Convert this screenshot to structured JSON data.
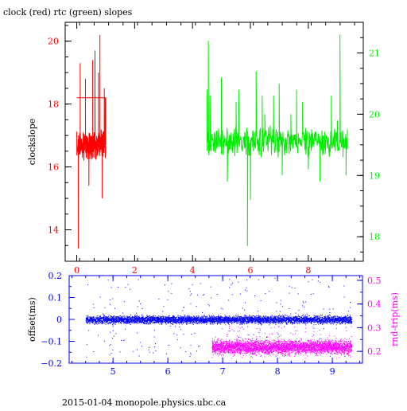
{
  "title": "clock (red) rtc (green) slopes",
  "footer": "2015-01-04  monopole.physics.ubc.ca",
  "colors": {
    "clock": "#ff0000",
    "rtc": "#00ee00",
    "offset": "#0000ff",
    "rndtrip": "#ff00ff",
    "frame": "#000000"
  },
  "chart_data": [
    {
      "type": "line",
      "title": "clock (red) rtc (green) slopes",
      "ylabel": "clockslope",
      "xlim": [
        -0.4,
        9.9
      ],
      "ylim_left": [
        13.0,
        20.6
      ],
      "ylim_right": [
        17.6,
        21.5
      ],
      "x_ticks": [
        0,
        2,
        4,
        6,
        8
      ],
      "y_left_ticks": [
        14,
        16,
        18,
        20
      ],
      "y_right_ticks": [
        18,
        19,
        20,
        21
      ],
      "grid": false,
      "series": [
        {
          "name": "clock",
          "axis": "left",
          "x_range": [
            0.0,
            1.0
          ],
          "baseline": 16.7,
          "spread": 0.35,
          "spikes": [
            [
              0.05,
              13.4
            ],
            [
              0.12,
              19.3
            ],
            [
              0.3,
              18.8
            ],
            [
              0.42,
              15.4
            ],
            [
              0.55,
              19.4
            ],
            [
              0.63,
              19.7
            ],
            [
              0.75,
              19.0
            ],
            [
              0.8,
              20.2
            ],
            [
              0.88,
              15.0
            ],
            [
              0.95,
              18.5
            ],
            [
              0.98,
              18.2
            ]
          ],
          "plateau": {
            "x": [
              0.0,
              1.0
            ],
            "y": 18.2
          }
        },
        {
          "name": "rtc",
          "axis": "right",
          "x_range": [
            4.5,
            9.35
          ],
          "baseline": 19.55,
          "spread": 0.18,
          "spikes": [
            [
              4.5,
              20.4
            ],
            [
              4.55,
              21.2
            ],
            [
              4.6,
              20.3
            ],
            [
              5.0,
              20.6
            ],
            [
              5.2,
              18.9
            ],
            [
              5.5,
              20.2
            ],
            [
              5.6,
              20.4
            ],
            [
              5.9,
              17.85
            ],
            [
              6.0,
              18.6
            ],
            [
              6.2,
              20.7
            ],
            [
              6.4,
              20.3
            ],
            [
              6.5,
              20.0
            ],
            [
              6.8,
              20.3
            ],
            [
              7.0,
              20.5
            ],
            [
              7.1,
              19.0
            ],
            [
              7.4,
              20.0
            ],
            [
              7.5,
              19.6
            ],
            [
              7.6,
              20.4
            ],
            [
              7.8,
              20.2
            ],
            [
              8.0,
              19.1
            ],
            [
              8.4,
              18.9
            ],
            [
              8.8,
              20.3
            ],
            [
              9.0,
              19.9
            ],
            [
              9.1,
              21.3
            ],
            [
              9.2,
              19.3
            ],
            [
              9.3,
              19.0
            ]
          ]
        }
      ]
    },
    {
      "type": "scatter",
      "xlabel": "",
      "ylabel": "offset(ms)",
      "ylabel_right": "rnd-trip(ms)",
      "xlim": [
        4.2,
        9.55
      ],
      "ylim_left": [
        -0.2,
        0.2
      ],
      "ylim_right": [
        0.15,
        0.52
      ],
      "x_ticks": [
        5,
        6,
        7,
        8,
        9
      ],
      "y_left_ticks": [
        -0.2,
        -0.1,
        0,
        0.1,
        0.2
      ],
      "y_left_tick_labels": [
        "−0.2",
        "−0.1",
        "0",
        "0.1",
        "0.2"
      ],
      "y_right_ticks": [
        0.2,
        0.3,
        0.4,
        0.5
      ],
      "y_right_tick_labels": [
        "0.2",
        "0.3",
        "0.4",
        "0.5"
      ],
      "grid": false,
      "series": [
        {
          "name": "offset",
          "axis": "left",
          "x_range": [
            4.5,
            9.35
          ],
          "center": 0.0,
          "band": 0.025,
          "outlier_range": [
            -0.17,
            0.19
          ]
        },
        {
          "name": "rnd-trip",
          "axis": "right",
          "x_range": [
            6.8,
            9.35
          ],
          "center": 0.22,
          "band": 0.04,
          "outlier_range": [
            0.17,
            0.31
          ]
        }
      ]
    }
  ]
}
